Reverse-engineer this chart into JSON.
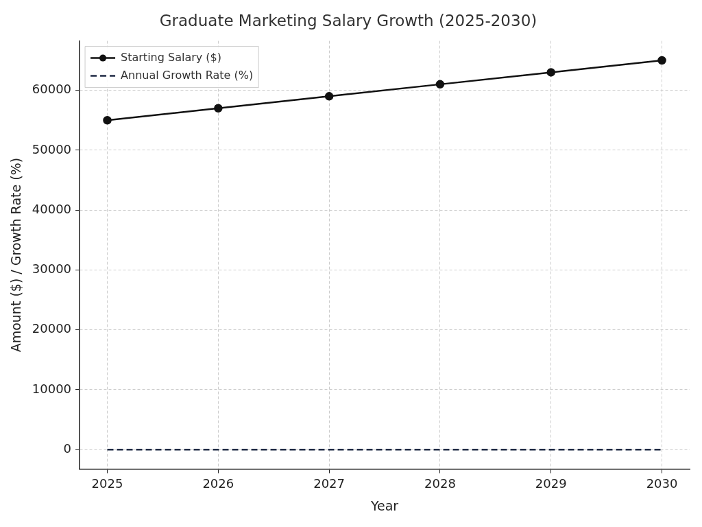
{
  "chart_data": {
    "type": "line",
    "title": "Graduate Marketing Salary Growth (2025-2030)",
    "xlabel": "Year",
    "ylabel": "Amount ($) / Growth Rate (%)",
    "x": [
      2025,
      2026,
      2027,
      2028,
      2029,
      2030
    ],
    "series": [
      {
        "name": "Starting Salary ($)",
        "color": "#111111",
        "values": [
          55000,
          57000,
          59000,
          61000,
          63000,
          65000
        ],
        "marker": "circle",
        "line_style": "solid"
      },
      {
        "name": "Annual Growth Rate (%)",
        "color": "#1f2a44",
        "values": [
          0,
          0,
          0,
          0,
          0,
          0
        ],
        "marker": "none",
        "line_style": "dashed"
      }
    ],
    "xlim": [
      2024.75,
      2030.25
    ],
    "xticks": [
      2025,
      2026,
      2027,
      2028,
      2029,
      2030
    ],
    "ylim": [
      -3250,
      68250
    ],
    "yticks": [
      0,
      10000,
      20000,
      30000,
      40000,
      50000,
      60000
    ],
    "grid": true,
    "legend": "top left"
  }
}
